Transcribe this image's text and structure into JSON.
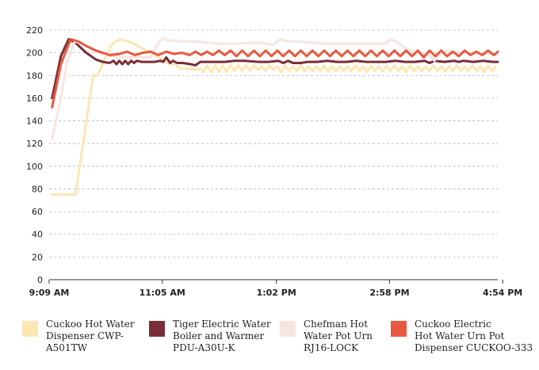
{
  "chart_data": {
    "type": "line",
    "title": "",
    "xlabel": "",
    "ylabel": "",
    "ylim": [
      0,
      220
    ],
    "yticks": [
      0,
      20,
      40,
      60,
      80,
      100,
      120,
      140,
      160,
      180,
      200,
      220
    ],
    "grid": true,
    "legend_position": "bottom",
    "xlim": [
      0,
      460
    ],
    "x_ticks": [
      {
        "x": 0,
        "label": "9:09 AM"
      },
      {
        "x": 116,
        "label": "11:05 AM"
      },
      {
        "x": 233,
        "label": "1:02 PM"
      },
      {
        "x": 349,
        "label": "2:58 PM"
      },
      {
        "x": 465,
        "label": "4:54 PM"
      }
    ],
    "series": [
      {
        "name": "Cuckoo  Hot Water\nDispenser CWP-\nA501TW",
        "color": "#fde6b2",
        "points": [
          [
            3,
            75
          ],
          [
            15,
            75
          ],
          [
            27,
            75
          ],
          [
            45,
            180
          ],
          [
            50,
            180
          ],
          [
            58,
            197
          ],
          [
            64,
            207
          ],
          [
            72,
            212
          ],
          [
            85,
            209
          ],
          [
            95,
            204
          ],
          [
            100,
            202
          ],
          [
            107,
            199
          ],
          [
            112,
            196
          ],
          [
            117,
            193
          ],
          [
            120,
            191
          ],
          [
            128,
            190
          ],
          [
            135,
            186
          ],
          [
            140,
            186
          ],
          [
            145,
            186
          ],
          [
            150,
            185
          ],
          [
            155,
            186
          ],
          [
            158,
            183
          ],
          [
            162,
            189
          ],
          [
            166,
            183
          ],
          [
            170,
            189
          ],
          [
            174,
            183
          ],
          [
            178,
            189
          ],
          [
            182,
            183
          ],
          [
            186,
            189
          ],
          [
            190,
            184
          ],
          [
            194,
            189
          ],
          [
            198,
            184
          ],
          [
            202,
            189
          ],
          [
            206,
            184
          ],
          [
            210,
            189
          ],
          [
            214,
            185
          ],
          [
            218,
            188
          ],
          [
            222,
            184
          ],
          [
            226,
            189
          ],
          [
            230,
            185
          ],
          [
            234,
            188
          ],
          [
            238,
            183
          ],
          [
            242,
            189
          ],
          [
            246,
            184
          ],
          [
            250,
            188
          ],
          [
            254,
            184
          ],
          [
            258,
            189
          ],
          [
            262,
            184
          ],
          [
            266,
            188
          ],
          [
            270,
            184
          ],
          [
            274,
            188
          ],
          [
            278,
            184
          ],
          [
            282,
            189
          ],
          [
            286,
            183
          ],
          [
            290,
            188
          ],
          [
            294,
            184
          ],
          [
            298,
            188
          ],
          [
            302,
            184
          ],
          [
            306,
            188
          ],
          [
            310,
            184
          ],
          [
            314,
            189
          ],
          [
            318,
            184
          ],
          [
            322,
            188
          ],
          [
            326,
            183
          ],
          [
            330,
            189
          ],
          [
            334,
            184
          ],
          [
            338,
            188
          ],
          [
            342,
            184
          ],
          [
            346,
            188
          ],
          [
            350,
            184
          ],
          [
            354,
            189
          ],
          [
            358,
            184
          ],
          [
            362,
            188
          ],
          [
            366,
            183
          ],
          [
            370,
            189
          ],
          [
            374,
            184
          ],
          [
            378,
            188
          ],
          [
            382,
            184
          ],
          [
            386,
            188
          ],
          [
            390,
            184
          ],
          [
            394,
            189
          ],
          [
            398,
            184
          ],
          [
            402,
            188
          ],
          [
            406,
            184
          ],
          [
            410,
            188
          ],
          [
            414,
            184
          ],
          [
            418,
            189
          ],
          [
            422,
            184
          ],
          [
            426,
            188
          ],
          [
            430,
            184
          ],
          [
            434,
            189
          ],
          [
            438,
            184
          ],
          [
            442,
            188
          ],
          [
            446,
            183
          ],
          [
            450,
            189
          ],
          [
            454,
            184
          ],
          [
            458,
            188
          ]
        ]
      },
      {
        "name": "Tiger Electric Water\nBoiler and Warmer\nPDU-A30U-K",
        "color": "#7a2e38",
        "points": [
          [
            3,
            160
          ],
          [
            12,
            197
          ],
          [
            20,
            212
          ],
          [
            28,
            208
          ],
          [
            38,
            200
          ],
          [
            48,
            194
          ],
          [
            55,
            192
          ],
          [
            62,
            191
          ],
          [
            66,
            193
          ],
          [
            69,
            190
          ],
          [
            72,
            193
          ],
          [
            75,
            190
          ],
          [
            78,
            193
          ],
          [
            81,
            190
          ],
          [
            84,
            193
          ],
          [
            87,
            191
          ],
          [
            90,
            193
          ],
          [
            95,
            192
          ],
          [
            100,
            192
          ],
          [
            108,
            192
          ],
          [
            114,
            193
          ],
          [
            117,
            192
          ],
          [
            120,
            196
          ],
          [
            124,
            191
          ],
          [
            127,
            193
          ],
          [
            131,
            191
          ],
          [
            137,
            191
          ],
          [
            145,
            190
          ],
          [
            150,
            189
          ],
          [
            155,
            192
          ],
          [
            165,
            192
          ],
          [
            180,
            192
          ],
          [
            190,
            193
          ],
          [
            200,
            193
          ],
          [
            215,
            192
          ],
          [
            225,
            192
          ],
          [
            235,
            193
          ],
          [
            240,
            191
          ],
          [
            245,
            193
          ],
          [
            250,
            191
          ],
          [
            258,
            191
          ],
          [
            265,
            192
          ],
          [
            275,
            192
          ],
          [
            285,
            193
          ],
          [
            295,
            192
          ],
          [
            305,
            192
          ],
          [
            315,
            193
          ],
          [
            325,
            192
          ],
          [
            335,
            192
          ],
          [
            345,
            192
          ],
          [
            355,
            193
          ],
          [
            365,
            192
          ],
          [
            375,
            192
          ],
          [
            385,
            193
          ],
          [
            390,
            191
          ],
          [
            395,
            193
          ],
          [
            405,
            192
          ],
          [
            415,
            193
          ],
          [
            420,
            192
          ],
          [
            425,
            193
          ],
          [
            435,
            192
          ],
          [
            445,
            193
          ],
          [
            455,
            192
          ],
          [
            460,
            192
          ]
        ]
      },
      {
        "name": "Chefman Hot\nWater Pot Urn\nRJ16-LOCK",
        "color": "#f5e6e1",
        "points": [
          [
            3,
            124
          ],
          [
            12,
            160
          ],
          [
            18,
            190
          ],
          [
            26,
            210
          ],
          [
            34,
            208
          ],
          [
            40,
            205
          ],
          [
            45,
            202
          ],
          [
            53,
            199
          ],
          [
            62,
            197
          ],
          [
            75,
            196
          ],
          [
            88,
            196
          ],
          [
            98,
            196
          ],
          [
            104,
            196
          ],
          [
            110,
            206
          ],
          [
            116,
            213
          ],
          [
            122,
            211
          ],
          [
            135,
            210
          ],
          [
            150,
            210
          ],
          [
            160,
            209
          ],
          [
            175,
            208
          ],
          [
            190,
            208
          ],
          [
            210,
            209
          ],
          [
            225,
            208
          ],
          [
            230,
            207
          ],
          [
            237,
            212
          ],
          [
            245,
            210
          ],
          [
            255,
            210
          ],
          [
            270,
            209
          ],
          [
            285,
            208
          ],
          [
            300,
            208
          ],
          [
            315,
            208
          ],
          [
            325,
            208
          ],
          [
            335,
            208
          ],
          [
            345,
            208
          ],
          [
            350,
            212
          ],
          [
            355,
            210
          ],
          [
            362,
            206
          ],
          [
            370,
            202
          ],
          [
            380,
            200
          ],
          [
            390,
            198
          ],
          [
            395,
            193
          ],
          [
            402,
            200
          ],
          [
            410,
            202
          ],
          [
            420,
            200
          ],
          [
            430,
            200
          ],
          [
            445,
            199
          ],
          [
            460,
            199
          ]
        ]
      },
      {
        "name": "Cuckoo  Electric\nHot Water Urn Pot\nDispenser CUCKOO-333",
        "color": "#e8593f",
        "points": [
          [
            3,
            152
          ],
          [
            12,
            190
          ],
          [
            22,
            212
          ],
          [
            30,
            210
          ],
          [
            38,
            206
          ],
          [
            48,
            202
          ],
          [
            55,
            200
          ],
          [
            62,
            198
          ],
          [
            72,
            199
          ],
          [
            80,
            201
          ],
          [
            88,
            198
          ],
          [
            96,
            200
          ],
          [
            104,
            201
          ],
          [
            112,
            198
          ],
          [
            120,
            201
          ],
          [
            128,
            199
          ],
          [
            136,
            200
          ],
          [
            144,
            198
          ],
          [
            150,
            201
          ],
          [
            156,
            198
          ],
          [
            162,
            201
          ],
          [
            168,
            198
          ],
          [
            174,
            202
          ],
          [
            180,
            198
          ],
          [
            186,
            202
          ],
          [
            192,
            197
          ],
          [
            198,
            202
          ],
          [
            204,
            197
          ],
          [
            210,
            202
          ],
          [
            216,
            197
          ],
          [
            222,
            202
          ],
          [
            228,
            197
          ],
          [
            234,
            202
          ],
          [
            240,
            197
          ],
          [
            246,
            202
          ],
          [
            252,
            197
          ],
          [
            258,
            202
          ],
          [
            264,
            197
          ],
          [
            270,
            202
          ],
          [
            276,
            197
          ],
          [
            282,
            202
          ],
          [
            288,
            197
          ],
          [
            294,
            202
          ],
          [
            300,
            197
          ],
          [
            306,
            202
          ],
          [
            312,
            197
          ],
          [
            318,
            202
          ],
          [
            324,
            197
          ],
          [
            330,
            202
          ],
          [
            336,
            197
          ],
          [
            342,
            202
          ],
          [
            348,
            197
          ],
          [
            354,
            202
          ],
          [
            360,
            197
          ],
          [
            366,
            202
          ],
          [
            372,
            197
          ],
          [
            378,
            202
          ],
          [
            384,
            196
          ],
          [
            390,
            202
          ],
          [
            396,
            197
          ],
          [
            402,
            202
          ],
          [
            408,
            197
          ],
          [
            414,
            201
          ],
          [
            420,
            197
          ],
          [
            426,
            202
          ],
          [
            432,
            198
          ],
          [
            438,
            201
          ],
          [
            444,
            198
          ],
          [
            450,
            202
          ],
          [
            456,
            198
          ],
          [
            460,
            201
          ]
        ]
      }
    ]
  }
}
